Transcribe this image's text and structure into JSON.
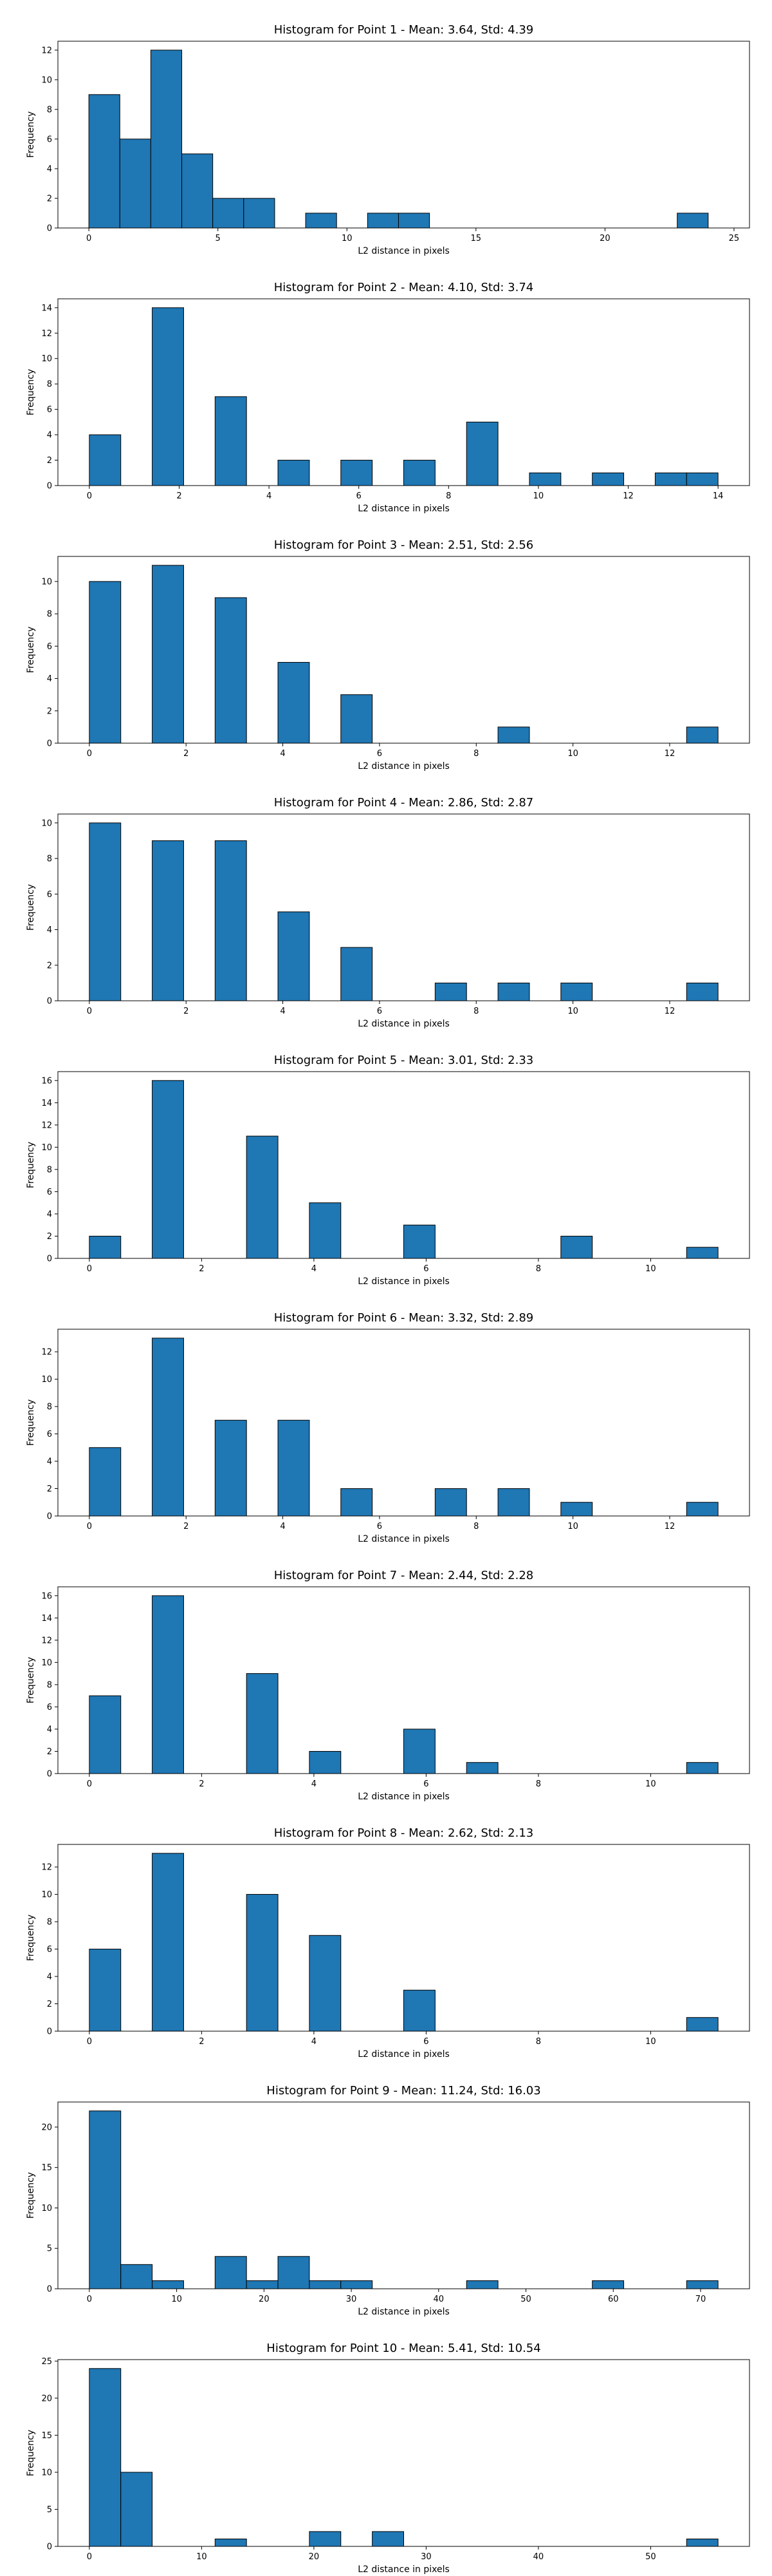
{
  "colors": {
    "bar_fill": "#1f77b4",
    "bar_edge": "#000000",
    "background": "#ffffff"
  },
  "chart_data": [
    {
      "type": "bar",
      "title": "Histogram for Point 1 - Mean: 3.64, Std: 4.39",
      "xlabel": "L2 distance in pixels",
      "ylabel": "Frequency",
      "xlim": [
        -1.2,
        25.6
      ],
      "ylim": [
        0,
        12.6
      ],
      "xticks": [
        0,
        5,
        10,
        15,
        20,
        25
      ],
      "yticks": [
        0,
        2,
        4,
        6,
        8,
        10,
        12
      ],
      "bin_edges": [
        0,
        1.2,
        2.4,
        3.6,
        4.8,
        6.0,
        7.2,
        8.4,
        9.6,
        10.8,
        12.0,
        13.2,
        14.4,
        15.6,
        16.8,
        18.0,
        19.2,
        20.4,
        21.6,
        22.8,
        24.0
      ],
      "values": [
        9,
        6,
        12,
        5,
        2,
        2,
        0,
        1,
        0,
        1,
        1,
        0,
        0,
        0,
        0,
        0,
        0,
        0,
        0,
        1
      ]
    },
    {
      "type": "bar",
      "title": "Histogram for Point 2 - Mean: 4.10, Std: 3.74",
      "xlabel": "L2 distance in pixels",
      "ylabel": "Frequency",
      "xlim": [
        -0.7,
        14.7
      ],
      "ylim": [
        0,
        14.7
      ],
      "xticks": [
        0,
        2,
        4,
        6,
        8,
        10,
        12,
        14
      ],
      "yticks": [
        0,
        2,
        4,
        6,
        8,
        10,
        12,
        14
      ],
      "bin_edges": [
        0,
        0.7,
        1.4,
        2.1,
        2.8,
        3.5,
        4.2,
        4.9,
        5.6,
        6.3,
        7.0,
        7.7,
        8.4,
        9.1,
        9.8,
        10.5,
        11.2,
        11.9,
        12.6,
        13.3,
        14.0
      ],
      "values": [
        4,
        0,
        14,
        0,
        7,
        0,
        2,
        0,
        2,
        0,
        2,
        0,
        5,
        0,
        1,
        0,
        1,
        0,
        1,
        1
      ]
    },
    {
      "type": "bar",
      "title": "Histogram for Point 3 - Mean: 2.51, Std: 2.56",
      "xlabel": "L2 distance in pixels",
      "ylabel": "Frequency",
      "xlim": [
        -0.65,
        13.65
      ],
      "ylim": [
        0,
        11.55
      ],
      "xticks": [
        0,
        2,
        4,
        6,
        8,
        10,
        12
      ],
      "yticks": [
        0,
        2,
        4,
        6,
        8,
        10
      ],
      "bin_edges": [
        0,
        0.65,
        1.3,
        1.95,
        2.6,
        3.25,
        3.9,
        4.55,
        5.2,
        5.85,
        6.5,
        7.15,
        7.8,
        8.45,
        9.1,
        9.75,
        10.4,
        11.05,
        11.7,
        12.35,
        13.0
      ],
      "values": [
        10,
        0,
        11,
        0,
        9,
        0,
        5,
        0,
        3,
        0,
        0,
        0,
        0,
        1,
        0,
        0,
        0,
        0,
        0,
        1
      ]
    },
    {
      "type": "bar",
      "title": "Histogram for Point 4 - Mean: 2.86, Std: 2.87",
      "xlabel": "L2 distance in pixels",
      "ylabel": "Frequency",
      "xlim": [
        -0.65,
        13.65
      ],
      "ylim": [
        0,
        10.5
      ],
      "xticks": [
        0,
        2,
        4,
        6,
        8,
        10,
        12
      ],
      "yticks": [
        0,
        2,
        4,
        6,
        8,
        10
      ],
      "bin_edges": [
        0,
        0.65,
        1.3,
        1.95,
        2.6,
        3.25,
        3.9,
        4.55,
        5.2,
        5.85,
        6.5,
        7.15,
        7.8,
        8.45,
        9.1,
        9.75,
        10.4,
        11.05,
        11.7,
        12.35,
        13.0
      ],
      "values": [
        10,
        0,
        9,
        0,
        9,
        0,
        5,
        0,
        3,
        0,
        0,
        1,
        0,
        1,
        0,
        1,
        0,
        0,
        0,
        1
      ]
    },
    {
      "type": "bar",
      "title": "Histogram for Point 5 - Mean: 3.01, Std: 2.33",
      "xlabel": "L2 distance in pixels",
      "ylabel": "Frequency",
      "xlim": [
        -0.56,
        11.76
      ],
      "ylim": [
        0,
        16.8
      ],
      "xticks": [
        0,
        2,
        4,
        6,
        8,
        10
      ],
      "yticks": [
        0,
        2,
        4,
        6,
        8,
        10,
        12,
        14,
        16
      ],
      "bin_edges": [
        0,
        0.56,
        1.12,
        1.68,
        2.24,
        2.8,
        3.36,
        3.92,
        4.48,
        5.04,
        5.6,
        6.16,
        6.72,
        7.28,
        7.84,
        8.4,
        8.96,
        9.52,
        10.08,
        10.64,
        11.2
      ],
      "values": [
        2,
        0,
        16,
        0,
        0,
        11,
        0,
        5,
        0,
        0,
        3,
        0,
        0,
        0,
        0,
        2,
        0,
        0,
        0,
        1
      ]
    },
    {
      "type": "bar",
      "title": "Histogram for Point 6 - Mean: 3.32, Std: 2.89",
      "xlabel": "L2 distance in pixels",
      "ylabel": "Frequency",
      "xlim": [
        -0.65,
        13.65
      ],
      "ylim": [
        0,
        13.65
      ],
      "xticks": [
        0,
        2,
        4,
        6,
        8,
        10,
        12
      ],
      "yticks": [
        0,
        2,
        4,
        6,
        8,
        10,
        12
      ],
      "bin_edges": [
        0,
        0.65,
        1.3,
        1.95,
        2.6,
        3.25,
        3.9,
        4.55,
        5.2,
        5.85,
        6.5,
        7.15,
        7.8,
        8.45,
        9.1,
        9.75,
        10.4,
        11.05,
        11.7,
        12.35,
        13.0
      ],
      "values": [
        5,
        0,
        13,
        0,
        7,
        0,
        7,
        0,
        2,
        0,
        0,
        2,
        0,
        2,
        0,
        1,
        0,
        0,
        0,
        1
      ]
    },
    {
      "type": "bar",
      "title": "Histogram for Point 7 - Mean: 2.44, Std: 2.28",
      "xlabel": "L2 distance in pixels",
      "ylabel": "Frequency",
      "xlim": [
        -0.56,
        11.76
      ],
      "ylim": [
        0,
        16.8
      ],
      "xticks": [
        0,
        2,
        4,
        6,
        8,
        10
      ],
      "yticks": [
        0,
        2,
        4,
        6,
        8,
        10,
        12,
        14,
        16
      ],
      "bin_edges": [
        0,
        0.56,
        1.12,
        1.68,
        2.24,
        2.8,
        3.36,
        3.92,
        4.48,
        5.04,
        5.6,
        6.16,
        6.72,
        7.28,
        7.84,
        8.4,
        8.96,
        9.52,
        10.08,
        10.64,
        11.2
      ],
      "values": [
        7,
        0,
        16,
        0,
        0,
        9,
        0,
        2,
        0,
        0,
        4,
        0,
        1,
        0,
        0,
        0,
        0,
        0,
        0,
        1
      ]
    },
    {
      "type": "bar",
      "title": "Histogram for Point 8 - Mean: 2.62, Std: 2.13",
      "xlabel": "L2 distance in pixels",
      "ylabel": "Frequency",
      "xlim": [
        -0.56,
        11.76
      ],
      "ylim": [
        0,
        13.65
      ],
      "xticks": [
        0,
        2,
        4,
        6,
        8,
        10
      ],
      "yticks": [
        0,
        2,
        4,
        6,
        8,
        10,
        12
      ],
      "bin_edges": [
        0,
        0.56,
        1.12,
        1.68,
        2.24,
        2.8,
        3.36,
        3.92,
        4.48,
        5.04,
        5.6,
        6.16,
        6.72,
        7.28,
        7.84,
        8.4,
        8.96,
        9.52,
        10.08,
        10.64,
        11.2
      ],
      "values": [
        6,
        0,
        13,
        0,
        0,
        10,
        0,
        7,
        0,
        0,
        3,
        0,
        0,
        0,
        0,
        0,
        0,
        0,
        0,
        1
      ]
    },
    {
      "type": "bar",
      "title": "Histogram for Point 9 - Mean: 11.24, Std: 16.03",
      "xlabel": "L2 distance in pixels",
      "ylabel": "Frequency",
      "xlim": [
        -3.6,
        75.6
      ],
      "ylim": [
        0,
        23.1
      ],
      "xticks": [
        0,
        10,
        20,
        30,
        40,
        50,
        60,
        70
      ],
      "yticks": [
        0,
        5,
        10,
        15,
        20
      ],
      "bin_edges": [
        0,
        3.6,
        7.2,
        10.8,
        14.4,
        18.0,
        21.6,
        25.2,
        28.8,
        32.4,
        36.0,
        39.6,
        43.2,
        46.8,
        50.4,
        54.0,
        57.6,
        61.2,
        64.8,
        68.4,
        72.0
      ],
      "values": [
        22,
        3,
        1,
        0,
        4,
        1,
        4,
        1,
        1,
        0,
        0,
        0,
        1,
        0,
        0,
        0,
        1,
        0,
        0,
        1
      ]
    },
    {
      "type": "bar",
      "title": "Histogram for Point 10 - Mean: 5.41, Std: 10.54",
      "xlabel": "L2 distance in pixels",
      "ylabel": "Frequency",
      "xlim": [
        -2.8,
        58.8
      ],
      "ylim": [
        0,
        25.2
      ],
      "xticks": [
        0,
        10,
        20,
        30,
        40,
        50
      ],
      "yticks": [
        0,
        5,
        10,
        15,
        20,
        25
      ],
      "bin_edges": [
        0,
        2.8,
        5.6,
        8.4,
        11.2,
        14.0,
        16.8,
        19.6,
        22.4,
        25.2,
        28.0,
        30.8,
        33.6,
        36.4,
        39.2,
        42.0,
        44.8,
        47.6,
        50.4,
        53.2,
        56.0
      ],
      "values": [
        24,
        10,
        0,
        0,
        1,
        0,
        0,
        2,
        0,
        2,
        0,
        0,
        0,
        0,
        0,
        0,
        0,
        0,
        0,
        1
      ]
    }
  ]
}
